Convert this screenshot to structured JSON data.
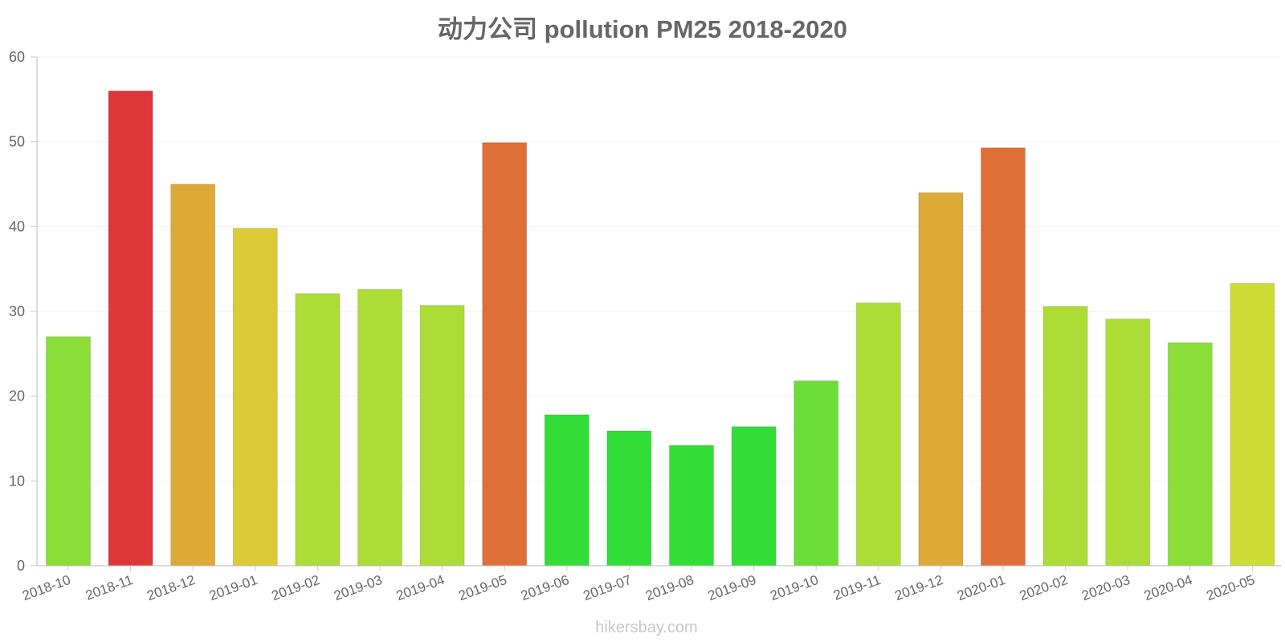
{
  "chart_data": {
    "type": "bar",
    "title": "动力公司 pollution PM25 2018-2020",
    "xlabel": "",
    "ylabel": "",
    "ylim": [
      0,
      60
    ],
    "yticks": [
      0,
      10,
      20,
      30,
      40,
      50,
      60
    ],
    "grid": true,
    "legend": "none",
    "categories": [
      "2018-10",
      "2018-11",
      "2018-12",
      "2019-01",
      "2019-02",
      "2019-03",
      "2019-04",
      "2019-05",
      "2019-06",
      "2019-07",
      "2019-08",
      "2019-09",
      "2019-10",
      "2019-11",
      "2019-12",
      "2020-01",
      "2020-02",
      "2020-03",
      "2020-04",
      "2020-05"
    ],
    "values": [
      27,
      56,
      45,
      39.8,
      32.1,
      32.6,
      30.7,
      49.9,
      17.8,
      15.9,
      14.2,
      16.4,
      21.8,
      31,
      44,
      49.3,
      30.6,
      29.1,
      26.3,
      33.3
    ],
    "colors": [
      "#8bdd37",
      "#dd3737",
      "#dda937",
      "#dccb37",
      "#acdd37",
      "#acdd37",
      "#acdd37",
      "#dd6f37",
      "#33dd37",
      "#33dd37",
      "#33dd37",
      "#33dd37",
      "#6cdd37",
      "#acdd37",
      "#dda937",
      "#dd6f37",
      "#acdd37",
      "#acdd37",
      "#8bdd37",
      "#cddd37"
    ]
  },
  "watermark": "hikersbay.com"
}
